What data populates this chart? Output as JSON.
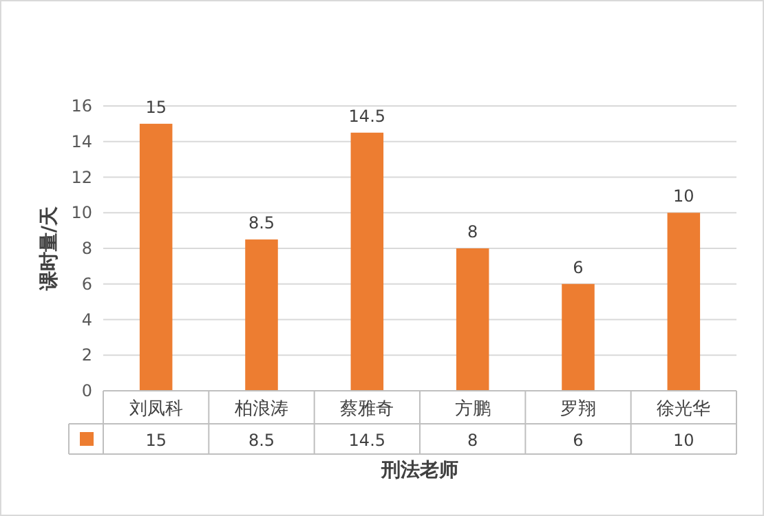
{
  "chart_data": {
    "type": "bar",
    "categories": [
      "刘凤科",
      "柏浪涛",
      "蔡雅奇",
      "方鹏",
      "罗翔",
      "徐光华"
    ],
    "values": [
      15,
      8.5,
      14.5,
      8,
      6,
      10
    ],
    "value_labels": [
      "15",
      "8.5",
      "14.5",
      "8",
      "6",
      "10"
    ],
    "color": "#ed7d31",
    "ylim": [
      0,
      16
    ],
    "yticks": [
      0,
      2,
      4,
      6,
      8,
      10,
      12,
      14,
      16
    ],
    "grid": "y",
    "annotations": [
      "15",
      "8.5",
      "14.5",
      "8",
      "6",
      "10"
    ],
    "xlabel": "刑法老师",
    "ylabel": "课时量/天"
  }
}
